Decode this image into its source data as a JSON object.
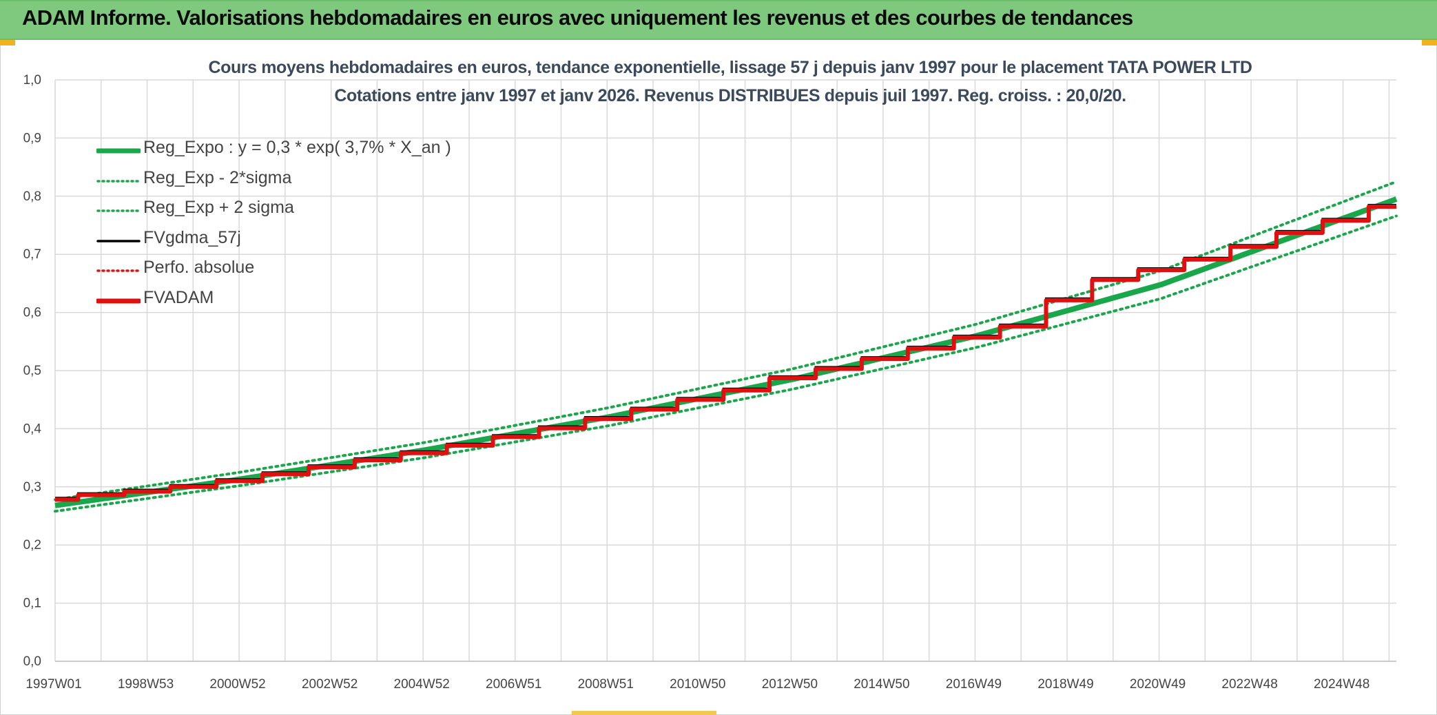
{
  "banner": {
    "title": "ADAM Informe. Valorisations hebdomadaires en euros avec uniquement les revenus et des courbes de tendances"
  },
  "chart_title": {
    "line1": "Cours moyens hebdomadaires en euros, tendance exponentielle, lissage 57 j depuis janv 1997 pour le placement TATA POWER LTD",
    "line2": "Cotations entre janv 1997 et janv 2026. Revenus DISTRIBUES depuis juil 1997. Reg. croiss. : 20,0/20."
  },
  "legend": [
    {
      "label": "Reg_Expo : y = 0,3 * exp( 3,7% *  X_an )",
      "style": "thick",
      "color": "#1aa64a"
    },
    {
      "label": "Reg_Exp - 2*sigma",
      "style": "dotted",
      "color": "#1aa64a"
    },
    {
      "label": "Reg_Exp + 2 sigma",
      "style": "dotted",
      "color": "#1aa64a"
    },
    {
      "label": "FVgdma_57j",
      "style": "solid",
      "color": "#000000"
    },
    {
      "label": "Perfo. absolue",
      "style": "dotted",
      "color": "#e01010"
    },
    {
      "label": "FVADAM",
      "style": "thick",
      "color": "#e01010"
    }
  ],
  "colors": {
    "green": "#1aa64a",
    "red": "#e01010",
    "black": "#000000",
    "grid": "#d9d9d9",
    "banner": "#7fc97f",
    "accent_corner": "#f2b21b"
  },
  "chart_data": {
    "type": "line",
    "ylim": [
      0,
      1.0
    ],
    "xlim": [
      1997.0,
      2026.1
    ],
    "y_ticks": [
      "0,0",
      "0,1",
      "0,2",
      "0,3",
      "0,4",
      "0,5",
      "0,6",
      "0,7",
      "0,8",
      "0,9",
      "1,0"
    ],
    "x_tick_labels": [
      "1997W01",
      "1998W53",
      "2000W52",
      "2002W52",
      "2004W52",
      "2006W51",
      "2008W51",
      "2010W50",
      "2012W50",
      "2014W50",
      "2016W49",
      "2018W49",
      "2020W49",
      "2022W48",
      "2024W48"
    ],
    "grid": true,
    "legend_position": "top-left",
    "series": [
      {
        "name": "Reg_Expo : y = 0,3 * exp( 3,7% *  X_an )",
        "x": [
          1997.0,
          2001.0,
          2005.0,
          2009.0,
          2013.0,
          2017.0,
          2021.0,
          2026.1
        ],
        "values": [
          0.268,
          0.313,
          0.363,
          0.42,
          0.485,
          0.56,
          0.648,
          0.795
        ]
      },
      {
        "name": "Reg_Exp - 2*sigma",
        "x": [
          1997.0,
          2001.0,
          2005.0,
          2009.0,
          2013.0,
          2017.0,
          2021.0,
          2026.1
        ],
        "values": [
          0.258,
          0.302,
          0.35,
          0.405,
          0.468,
          0.54,
          0.624,
          0.766
        ]
      },
      {
        "name": "Reg_Exp + 2 sigma",
        "x": [
          1997.0,
          2001.0,
          2005.0,
          2009.0,
          2013.0,
          2017.0,
          2021.0,
          2026.1
        ],
        "values": [
          0.278,
          0.325,
          0.376,
          0.436,
          0.503,
          0.58,
          0.672,
          0.825
        ]
      },
      {
        "name": "FVADAM",
        "x": [
          1997.0,
          1997.5,
          1998.5,
          1999.5,
          2000.5,
          2001.5,
          2002.5,
          2003.5,
          2004.5,
          2005.5,
          2006.5,
          2007.5,
          2008.5,
          2009.5,
          2010.5,
          2011.5,
          2012.5,
          2013.5,
          2014.5,
          2015.5,
          2016.5,
          2017.5,
          2018.5,
          2019.5,
          2020.5,
          2021.5,
          2022.5,
          2023.5,
          2024.5,
          2025.5,
          2026.1
        ],
        "values": [
          0.278,
          0.286,
          0.292,
          0.3,
          0.31,
          0.322,
          0.334,
          0.346,
          0.358,
          0.371,
          0.386,
          0.401,
          0.417,
          0.433,
          0.45,
          0.466,
          0.487,
          0.503,
          0.52,
          0.538,
          0.557,
          0.576,
          0.621,
          0.656,
          0.673,
          0.691,
          0.713,
          0.737,
          0.758,
          0.782,
          0.782
        ]
      }
    ]
  }
}
